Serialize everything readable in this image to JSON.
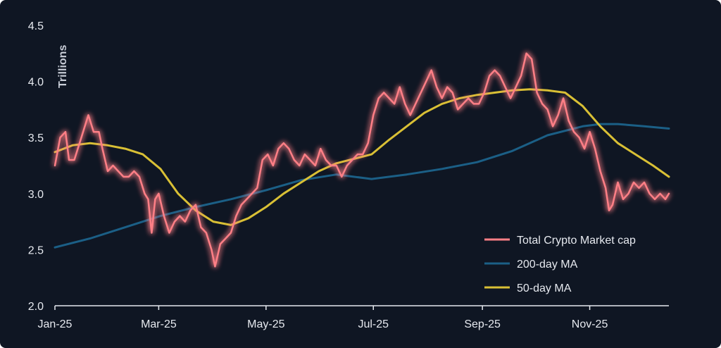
{
  "chart_data": {
    "type": "line",
    "ylabel": "Trillions",
    "ylim": [
      2.0,
      4.5
    ],
    "yticks": [
      "2.0",
      "2.5",
      "3.0",
      "3.5",
      "4.0",
      "4.5"
    ],
    "xtick_labels": [
      {
        "label": "Jan-25",
        "day": 0
      },
      {
        "label": "Mar-25",
        "day": 59
      },
      {
        "label": "May-25",
        "day": 120
      },
      {
        "label": "Jul-25",
        "day": 181
      },
      {
        "label": "Sep-25",
        "day": 243
      },
      {
        "label": "Nov-25",
        "day": 304
      }
    ],
    "x_domain_days": [
      0,
      349
    ],
    "legend_position": "bottom-right",
    "grid": false,
    "series": [
      {
        "name": "Total Crypto Market cap",
        "color": "#ff7f86",
        "points": [
          [
            0,
            3.25
          ],
          [
            3,
            3.5
          ],
          [
            6,
            3.55
          ],
          [
            8,
            3.3
          ],
          [
            11,
            3.3
          ],
          [
            14,
            3.45
          ],
          [
            17,
            3.6
          ],
          [
            19,
            3.7
          ],
          [
            22,
            3.55
          ],
          [
            25,
            3.55
          ],
          [
            27,
            3.4
          ],
          [
            30,
            3.2
          ],
          [
            33,
            3.25
          ],
          [
            36,
            3.2
          ],
          [
            39,
            3.15
          ],
          [
            42,
            3.15
          ],
          [
            45,
            3.2
          ],
          [
            48,
            3.15
          ],
          [
            51,
            3.0
          ],
          [
            53,
            2.95
          ],
          [
            55,
            2.65
          ],
          [
            57,
            2.95
          ],
          [
            59,
            3.0
          ],
          [
            62,
            2.8
          ],
          [
            65,
            2.65
          ],
          [
            68,
            2.75
          ],
          [
            71,
            2.8
          ],
          [
            74,
            2.75
          ],
          [
            77,
            2.85
          ],
          [
            80,
            2.9
          ],
          [
            83,
            2.7
          ],
          [
            86,
            2.65
          ],
          [
            89,
            2.5
          ],
          [
            91,
            2.35
          ],
          [
            94,
            2.55
          ],
          [
            97,
            2.6
          ],
          [
            100,
            2.65
          ],
          [
            103,
            2.8
          ],
          [
            106,
            2.9
          ],
          [
            109,
            2.95
          ],
          [
            112,
            3.0
          ],
          [
            115,
            3.05
          ],
          [
            118,
            3.3
          ],
          [
            121,
            3.35
          ],
          [
            124,
            3.25
          ],
          [
            127,
            3.4
          ],
          [
            130,
            3.45
          ],
          [
            133,
            3.4
          ],
          [
            136,
            3.3
          ],
          [
            139,
            3.25
          ],
          [
            142,
            3.35
          ],
          [
            145,
            3.3
          ],
          [
            148,
            3.25
          ],
          [
            151,
            3.4
          ],
          [
            154,
            3.3
          ],
          [
            157,
            3.25
          ],
          [
            160,
            3.25
          ],
          [
            163,
            3.15
          ],
          [
            166,
            3.25
          ],
          [
            169,
            3.3
          ],
          [
            172,
            3.35
          ],
          [
            175,
            3.35
          ],
          [
            178,
            3.45
          ],
          [
            181,
            3.7
          ],
          [
            184,
            3.85
          ],
          [
            187,
            3.9
          ],
          [
            190,
            3.85
          ],
          [
            193,
            3.8
          ],
          [
            196,
            3.95
          ],
          [
            199,
            3.8
          ],
          [
            202,
            3.7
          ],
          [
            205,
            3.8
          ],
          [
            208,
            3.9
          ],
          [
            211,
            4.0
          ],
          [
            214,
            4.1
          ],
          [
            217,
            3.95
          ],
          [
            220,
            3.85
          ],
          [
            223,
            3.95
          ],
          [
            226,
            3.9
          ],
          [
            229,
            3.75
          ],
          [
            232,
            3.8
          ],
          [
            235,
            3.85
          ],
          [
            238,
            3.8
          ],
          [
            241,
            3.8
          ],
          [
            244,
            3.9
          ],
          [
            247,
            4.05
          ],
          [
            250,
            4.1
          ],
          [
            253,
            4.05
          ],
          [
            256,
            3.95
          ],
          [
            259,
            3.85
          ],
          [
            262,
            3.95
          ],
          [
            265,
            4.05
          ],
          [
            268,
            4.25
          ],
          [
            271,
            4.2
          ],
          [
            274,
            3.9
          ],
          [
            277,
            3.8
          ],
          [
            280,
            3.75
          ],
          [
            283,
            3.6
          ],
          [
            286,
            3.7
          ],
          [
            289,
            3.85
          ],
          [
            292,
            3.65
          ],
          [
            295,
            3.55
          ],
          [
            298,
            3.5
          ],
          [
            301,
            3.4
          ],
          [
            304,
            3.55
          ],
          [
            307,
            3.4
          ],
          [
            310,
            3.2
          ],
          [
            313,
            3.05
          ],
          [
            315,
            2.85
          ],
          [
            317,
            2.9
          ],
          [
            320,
            3.1
          ],
          [
            323,
            2.95
          ],
          [
            326,
            3.0
          ],
          [
            329,
            3.1
          ],
          [
            332,
            3.05
          ],
          [
            335,
            3.1
          ],
          [
            338,
            3.0
          ],
          [
            341,
            2.95
          ],
          [
            344,
            3.0
          ],
          [
            347,
            2.95
          ],
          [
            349,
            3.0
          ]
        ]
      },
      {
        "name": "200-day MA",
        "color": "#1b5f86",
        "points": [
          [
            0,
            2.52
          ],
          [
            20,
            2.6
          ],
          [
            40,
            2.7
          ],
          [
            60,
            2.8
          ],
          [
            80,
            2.88
          ],
          [
            100,
            2.95
          ],
          [
            120,
            3.03
          ],
          [
            140,
            3.12
          ],
          [
            160,
            3.17
          ],
          [
            180,
            3.13
          ],
          [
            200,
            3.17
          ],
          [
            220,
            3.22
          ],
          [
            240,
            3.28
          ],
          [
            260,
            3.38
          ],
          [
            280,
            3.52
          ],
          [
            300,
            3.6
          ],
          [
            310,
            3.62
          ],
          [
            320,
            3.62
          ],
          [
            335,
            3.6
          ],
          [
            349,
            3.58
          ]
        ]
      },
      {
        "name": "50-day MA",
        "color": "#d9c035",
        "points": [
          [
            0,
            3.37
          ],
          [
            10,
            3.43
          ],
          [
            20,
            3.45
          ],
          [
            30,
            3.43
          ],
          [
            40,
            3.4
          ],
          [
            50,
            3.35
          ],
          [
            60,
            3.22
          ],
          [
            70,
            3.0
          ],
          [
            80,
            2.85
          ],
          [
            90,
            2.75
          ],
          [
            100,
            2.72
          ],
          [
            110,
            2.78
          ],
          [
            120,
            2.88
          ],
          [
            130,
            3.0
          ],
          [
            140,
            3.1
          ],
          [
            150,
            3.2
          ],
          [
            160,
            3.27
          ],
          [
            170,
            3.31
          ],
          [
            180,
            3.35
          ],
          [
            190,
            3.48
          ],
          [
            200,
            3.6
          ],
          [
            210,
            3.72
          ],
          [
            220,
            3.8
          ],
          [
            230,
            3.85
          ],
          [
            240,
            3.88
          ],
          [
            250,
            3.9
          ],
          [
            260,
            3.92
          ],
          [
            270,
            3.93
          ],
          [
            280,
            3.92
          ],
          [
            290,
            3.9
          ],
          [
            300,
            3.78
          ],
          [
            310,
            3.6
          ],
          [
            320,
            3.45
          ],
          [
            330,
            3.35
          ],
          [
            340,
            3.25
          ],
          [
            349,
            3.15
          ]
        ]
      }
    ]
  }
}
